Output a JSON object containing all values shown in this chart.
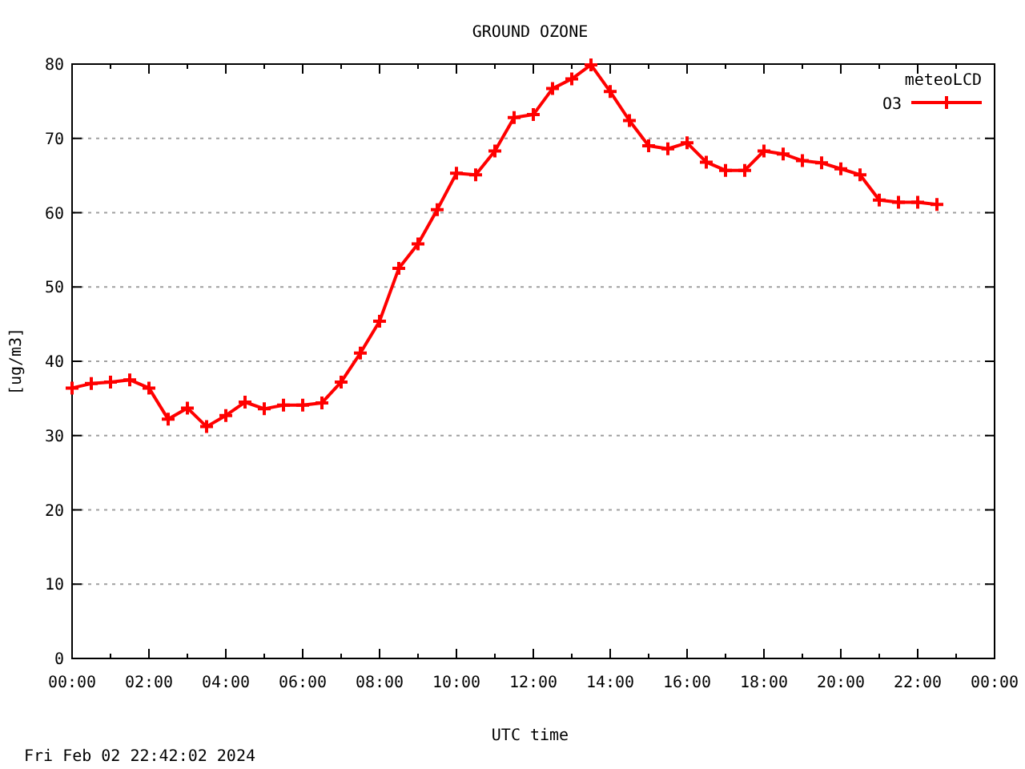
{
  "chart_data": {
    "type": "line",
    "title": "GROUND OZONE",
    "xlabel": "UTC time",
    "ylabel": "[ug/m3]",
    "legend_title": "meteoLCD",
    "legend": "top right",
    "grid": "y",
    "marker": "cross",
    "line_style": "solid",
    "x": [
      0,
      0.5,
      1,
      1.5,
      2,
      2.5,
      3,
      3.5,
      4,
      4.5,
      5,
      5.5,
      6,
      6.5,
      7,
      7.5,
      8,
      8.5,
      9,
      9.5,
      10,
      10.5,
      11,
      11.5,
      12,
      12.5,
      13,
      13.5,
      14,
      14.5,
      15,
      15.5,
      16,
      16.5,
      17,
      17.5,
      18,
      18.5,
      19,
      19.5,
      20,
      20.5,
      21,
      21.5,
      22,
      22.5
    ],
    "series": [
      {
        "name": "O3",
        "color": "#ff0000",
        "values": [
          36.4,
          37.0,
          37.2,
          37.5,
          36.4,
          32.2,
          33.7,
          31.2,
          32.7,
          34.5,
          33.6,
          34.1,
          34.1,
          34.4,
          37.2,
          41.1,
          45.4,
          52.5,
          55.8,
          60.4,
          65.3,
          65.1,
          68.3,
          72.8,
          73.2,
          76.7,
          78.0,
          79.9,
          76.3,
          72.4,
          69.0,
          68.6,
          69.4,
          66.8,
          65.7,
          65.7,
          68.3,
          67.9,
          67.0,
          66.7,
          65.9,
          65.1,
          61.7,
          61.4,
          61.4,
          61.1
        ]
      }
    ],
    "xlim": [
      0,
      24
    ],
    "xticks": [
      {
        "value": 0,
        "label": "00:00"
      },
      {
        "value": 1,
        "label": null
      },
      {
        "value": 2,
        "label": "02:00"
      },
      {
        "value": 3,
        "label": null
      },
      {
        "value": 4,
        "label": "04:00"
      },
      {
        "value": 5,
        "label": null
      },
      {
        "value": 6,
        "label": "06:00"
      },
      {
        "value": 7,
        "label": null
      },
      {
        "value": 8,
        "label": "08:00"
      },
      {
        "value": 9,
        "label": null
      },
      {
        "value": 10,
        "label": "10:00"
      },
      {
        "value": 11,
        "label": null
      },
      {
        "value": 12,
        "label": "12:00"
      },
      {
        "value": 13,
        "label": null
      },
      {
        "value": 14,
        "label": "14:00"
      },
      {
        "value": 15,
        "label": null
      },
      {
        "value": 16,
        "label": "16:00"
      },
      {
        "value": 17,
        "label": null
      },
      {
        "value": 18,
        "label": "18:00"
      },
      {
        "value": 19,
        "label": null
      },
      {
        "value": 20,
        "label": "20:00"
      },
      {
        "value": 21,
        "label": null
      },
      {
        "value": 22,
        "label": "22:00"
      },
      {
        "value": 23,
        "label": null
      },
      {
        "value": 24,
        "label": "00:00"
      }
    ],
    "ylim": [
      0,
      80
    ],
    "yticks": [
      0,
      10,
      20,
      30,
      40,
      50,
      60,
      70,
      80
    ],
    "annotations": [
      "Fri Feb 02 22:42:02 2024"
    ]
  }
}
